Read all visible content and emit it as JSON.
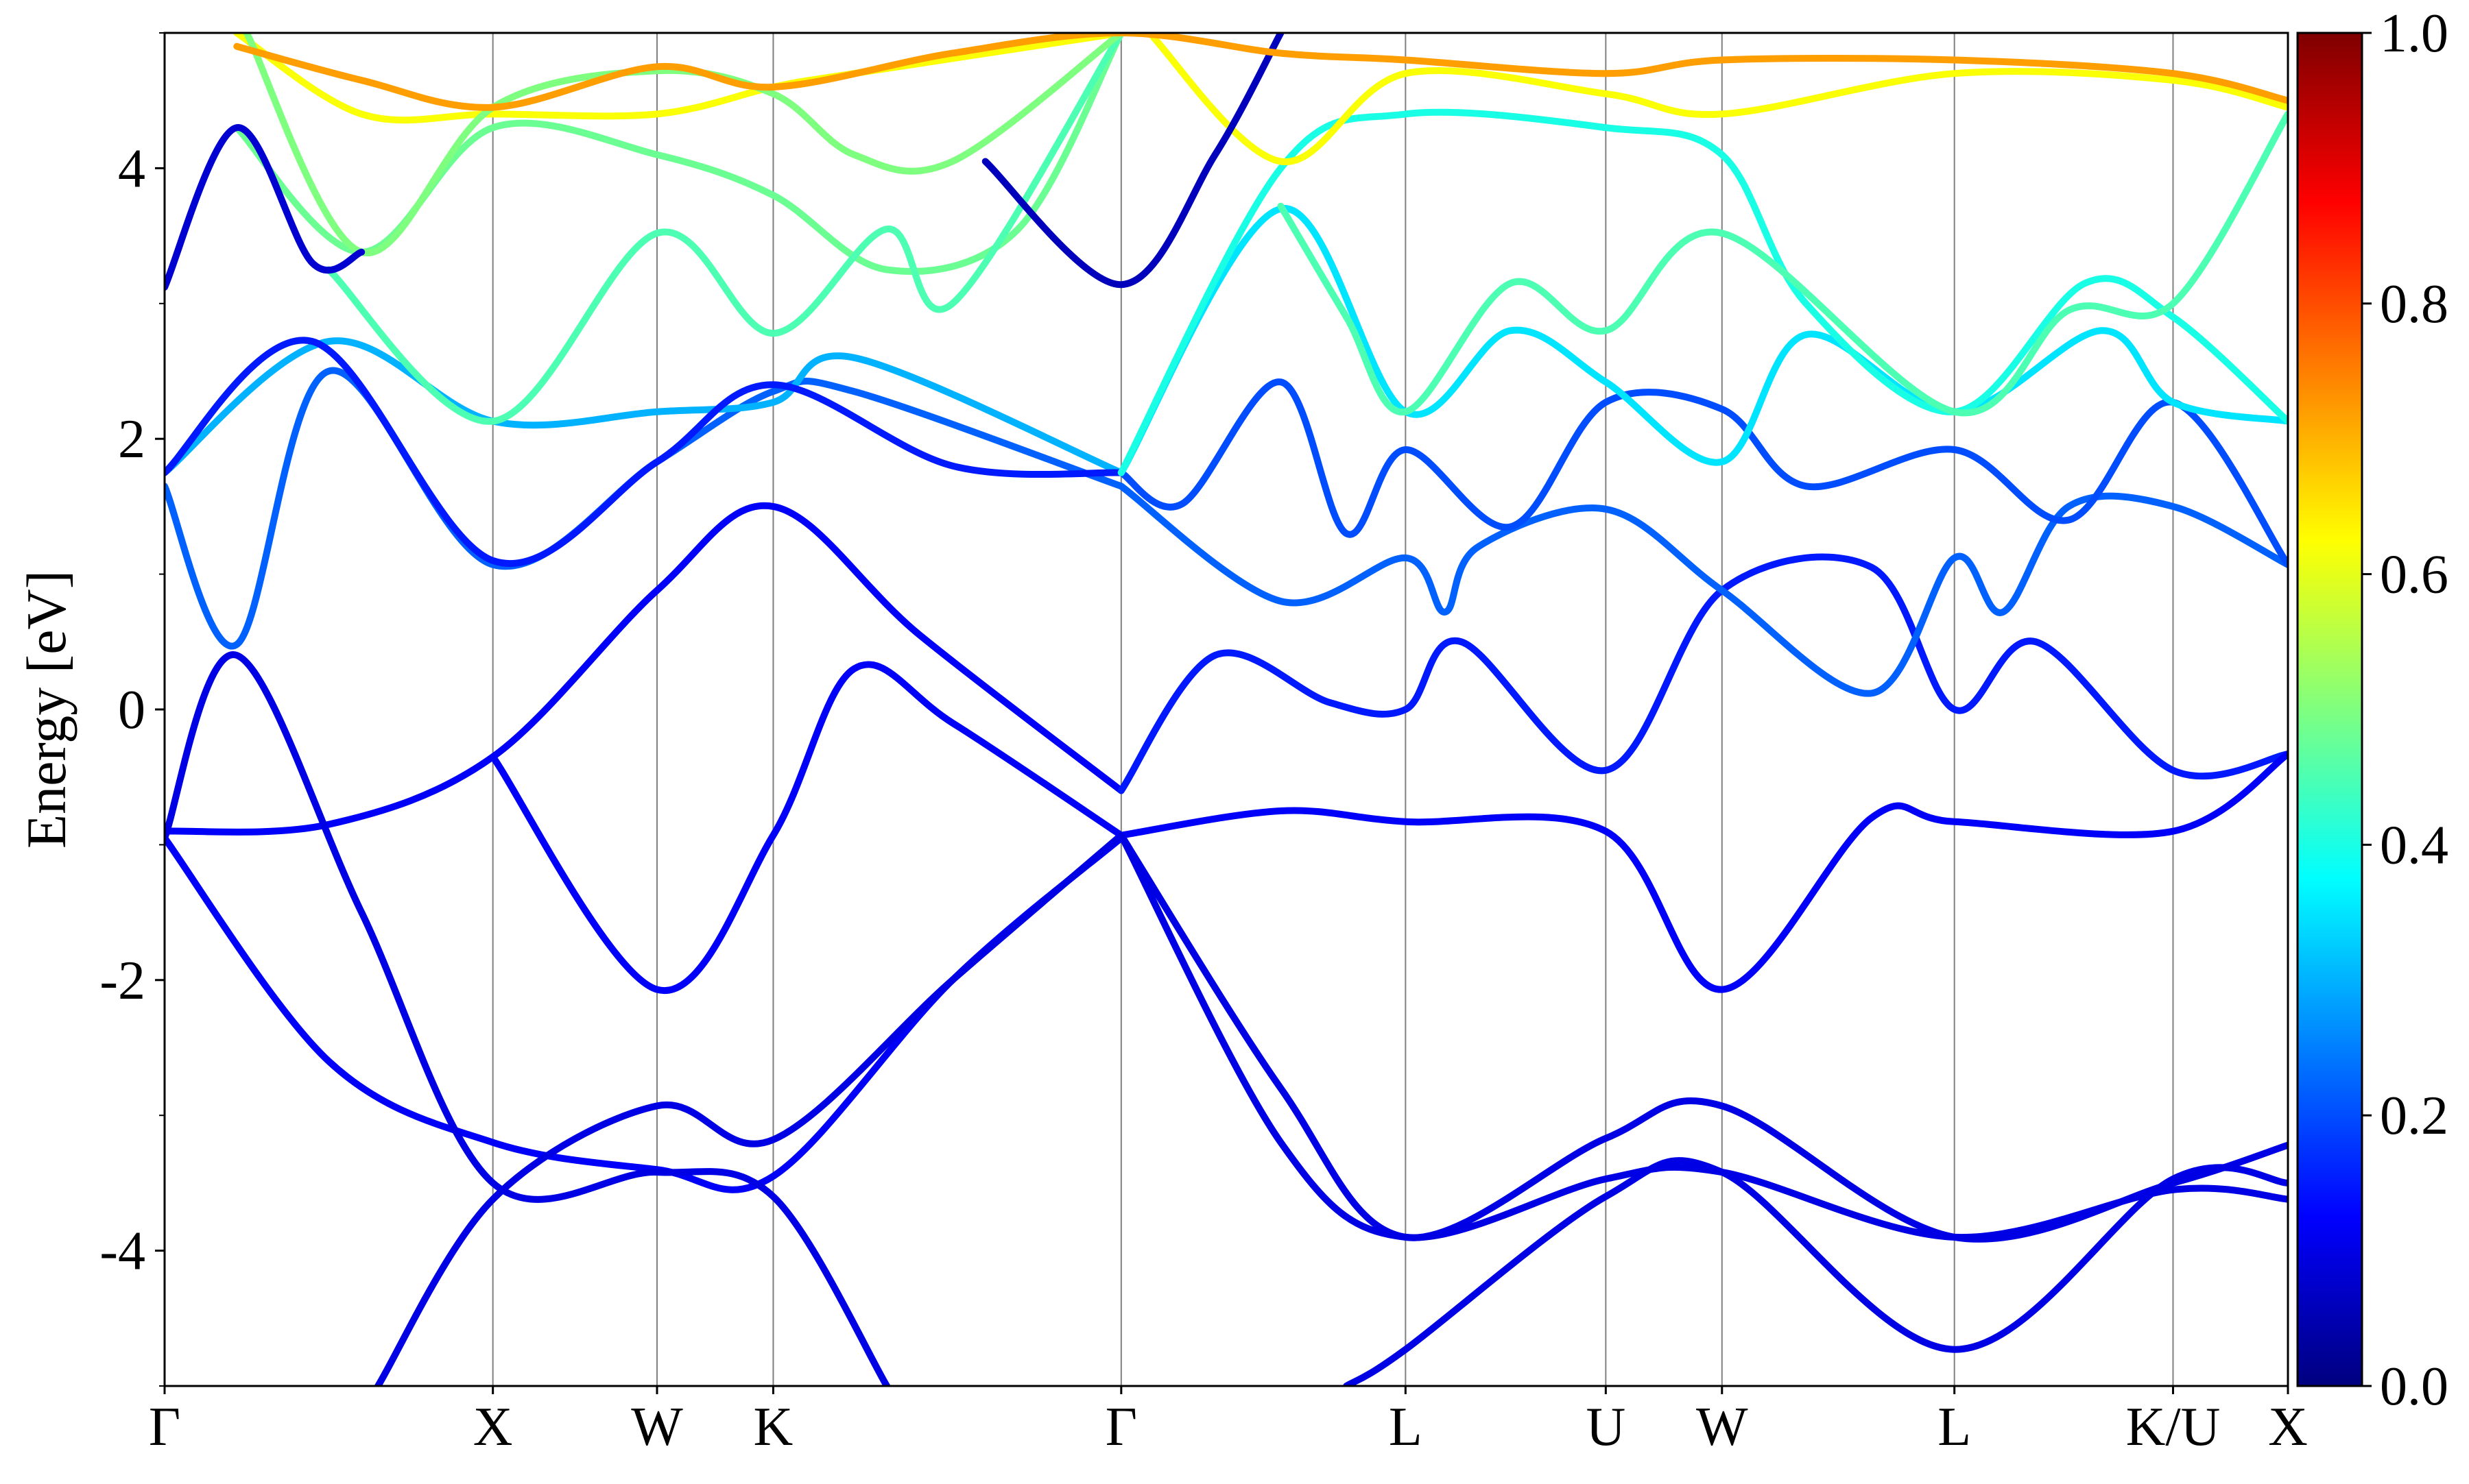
{
  "chart_data": {
    "type": "line",
    "title": "",
    "xlabel": "",
    "ylabel": "Energy [eV]",
    "ylim": [
      -5,
      5
    ],
    "yticks": [
      -4,
      -2,
      0,
      2,
      4
    ],
    "ytick_labels": [
      "-4",
      "-2",
      "0",
      "2",
      "4"
    ],
    "kpath_labels": [
      "Γ",
      "X",
      "W",
      "K",
      "Γ",
      "L",
      "U",
      "W",
      "L",
      "K/U",
      "X"
    ],
    "kpath_positions": [
      0.0,
      1.0,
      1.5,
      1.854,
      2.914,
      3.78,
      4.39,
      4.744,
      5.452,
      6.118,
      6.468
    ],
    "grid": "vertical lines at high-symmetry points",
    "legend": "none",
    "colorbar": {
      "range": [
        0.0,
        1.0
      ],
      "ticks": [
        0.0,
        0.2,
        0.4,
        0.6,
        0.8,
        1.0
      ],
      "tick_labels": [
        "0.0",
        "0.2",
        "0.4",
        "0.6",
        "0.8",
        "1.0"
      ],
      "colormap": "jet",
      "stops": [
        "#00007f",
        "#0000ff",
        "#007fff",
        "#00ffff",
        "#7fff7f",
        "#ffff00",
        "#ff7f00",
        "#ff0000",
        "#7f0000"
      ]
    },
    "series": [
      {
        "weight": 0.12,
        "points": [
          [
            0,
            -0.9
          ],
          [
            0.5,
            -0.85
          ],
          [
            1.0,
            -0.35
          ],
          [
            1.5,
            0.88
          ],
          [
            1.854,
            1.5
          ],
          [
            2.3,
            0.55
          ],
          [
            2.914,
            -0.6
          ]
        ]
      },
      {
        "weight": 0.12,
        "points": [
          [
            0,
            -0.95
          ],
          [
            0.5,
            -2.6
          ],
          [
            1.0,
            -3.2
          ],
          [
            1.5,
            -3.4
          ],
          [
            1.854,
            -3.45
          ],
          [
            2.4,
            -2.0
          ],
          [
            2.914,
            -0.95
          ]
        ]
      },
      {
        "weight": 0.1,
        "points": [
          [
            0,
            -0.95
          ],
          [
            0.22,
            0.4
          ],
          [
            0.6,
            -1.5
          ],
          [
            1.0,
            -3.5
          ],
          [
            1.5,
            -3.42
          ],
          [
            1.854,
            -3.6
          ],
          [
            2.2,
            -5.0
          ]
        ]
      },
      {
        "weight": 0.1,
        "points": [
          [
            0.65,
            -5.0
          ],
          [
            1.0,
            -3.62
          ],
          [
            1.5,
            -2.93
          ],
          [
            1.854,
            -3.18
          ],
          [
            2.4,
            -2.0
          ],
          [
            2.914,
            -0.93
          ]
        ]
      },
      {
        "weight": 0.12,
        "points": [
          [
            1.0,
            -0.35
          ],
          [
            1.5,
            -2.07
          ],
          [
            1.854,
            -0.93
          ],
          [
            2.1,
            0.3
          ],
          [
            2.4,
            -0.1
          ],
          [
            2.914,
            -0.93
          ]
        ]
      },
      {
        "weight": 0.22,
        "points": [
          [
            0,
            1.65
          ],
          [
            0.22,
            0.48
          ],
          [
            0.5,
            2.5
          ],
          [
            1.0,
            1.07
          ],
          [
            1.5,
            1.83
          ],
          [
            1.854,
            2.35
          ],
          [
            2.1,
            2.35
          ],
          [
            2.914,
            1.65
          ]
        ]
      },
      {
        "weight": 0.3,
        "points": [
          [
            0,
            1.75
          ],
          [
            0.5,
            2.72
          ],
          [
            1.0,
            2.13
          ],
          [
            1.5,
            2.2
          ],
          [
            1.854,
            2.27
          ],
          [
            2.1,
            2.6
          ],
          [
            2.914,
            1.75
          ]
        ]
      },
      {
        "weight": 0.15,
        "points": [
          [
            0,
            1.75
          ],
          [
            0.45,
            2.72
          ],
          [
            1.0,
            1.1
          ],
          [
            1.5,
            1.83
          ],
          [
            1.854,
            2.4
          ],
          [
            2.4,
            1.8
          ],
          [
            2.914,
            1.75
          ]
        ]
      },
      {
        "weight": 0.15,
        "points": [
          [
            2.914,
            -0.6
          ],
          [
            3.2,
            0.4
          ],
          [
            3.55,
            0.05
          ],
          [
            3.78,
            0.0
          ],
          [
            3.95,
            0.5
          ],
          [
            4.39,
            -0.45
          ],
          [
            4.744,
            0.88
          ],
          [
            5.2,
            1.05
          ],
          [
            5.452,
            0.0
          ],
          [
            5.7,
            0.5
          ],
          [
            6.118,
            -0.45
          ],
          [
            6.468,
            -0.33
          ]
        ]
      },
      {
        "weight": 0.12,
        "points": [
          [
            2.914,
            -0.93
          ],
          [
            3.4,
            -0.75
          ],
          [
            3.78,
            -0.83
          ],
          [
            4.39,
            -0.9
          ],
          [
            4.744,
            -2.07
          ],
          [
            5.2,
            -0.8
          ],
          [
            5.452,
            -0.83
          ],
          [
            6.118,
            -0.9
          ],
          [
            6.468,
            -0.33
          ]
        ]
      },
      {
        "weight": 0.1,
        "points": [
          [
            2.914,
            -0.93
          ],
          [
            3.4,
            -2.8
          ],
          [
            3.78,
            -3.9
          ],
          [
            4.39,
            -3.17
          ],
          [
            4.744,
            -2.93
          ],
          [
            5.452,
            -3.9
          ],
          [
            6.118,
            -3.5
          ],
          [
            6.468,
            -3.22
          ]
        ]
      },
      {
        "weight": 0.1,
        "points": [
          [
            3.6,
            -5.0
          ],
          [
            3.78,
            -4.73
          ],
          [
            4.39,
            -3.6
          ],
          [
            4.744,
            -3.42
          ],
          [
            5.452,
            -4.73
          ],
          [
            6.118,
            -3.47
          ],
          [
            6.468,
            -3.5
          ]
        ]
      },
      {
        "weight": 0.1,
        "points": [
          [
            2.914,
            -0.93
          ],
          [
            3.4,
            -3.2
          ],
          [
            3.78,
            -3.9
          ],
          [
            4.39,
            -3.47
          ],
          [
            4.744,
            -3.42
          ],
          [
            5.452,
            -3.9
          ],
          [
            6.118,
            -3.55
          ],
          [
            6.468,
            -3.62
          ]
        ]
      },
      {
        "weight": 0.22,
        "points": [
          [
            2.914,
            1.65
          ],
          [
            3.4,
            0.8
          ],
          [
            3.78,
            1.12
          ],
          [
            3.9,
            0.72
          ],
          [
            4.0,
            1.2
          ],
          [
            4.39,
            1.48
          ],
          [
            4.744,
            0.88
          ],
          [
            5.2,
            0.12
          ],
          [
            5.452,
            1.12
          ],
          [
            5.6,
            0.72
          ],
          [
            5.8,
            1.5
          ],
          [
            6.118,
            1.5
          ],
          [
            6.468,
            1.07
          ]
        ]
      },
      {
        "weight": 0.2,
        "points": [
          [
            2.914,
            1.75
          ],
          [
            3.1,
            1.52
          ],
          [
            3.4,
            2.42
          ],
          [
            3.6,
            1.3
          ],
          [
            3.78,
            1.92
          ],
          [
            4.1,
            1.35
          ],
          [
            4.39,
            2.27
          ],
          [
            4.744,
            2.22
          ],
          [
            5.0,
            1.65
          ],
          [
            5.452,
            1.92
          ],
          [
            5.8,
            1.4
          ],
          [
            6.118,
            2.27
          ],
          [
            6.468,
            1.07
          ]
        ]
      },
      {
        "weight": 0.35,
        "points": [
          [
            2.914,
            1.75
          ],
          [
            3.4,
            3.7
          ],
          [
            3.78,
            2.2
          ],
          [
            4.1,
            2.8
          ],
          [
            4.39,
            2.42
          ],
          [
            4.744,
            1.83
          ],
          [
            5.0,
            2.77
          ],
          [
            5.452,
            2.2
          ],
          [
            5.9,
            2.8
          ],
          [
            6.118,
            2.27
          ],
          [
            6.468,
            2.13
          ]
        ]
      },
      {
        "weight": 0.4,
        "points": [
          [
            2.914,
            1.75
          ],
          [
            3.4,
            4.0
          ],
          [
            3.78,
            4.4
          ],
          [
            4.39,
            4.3
          ],
          [
            4.744,
            4.1
          ],
          [
            5.0,
            3.0
          ],
          [
            5.452,
            2.2
          ],
          [
            5.85,
            3.15
          ],
          [
            6.118,
            2.9
          ],
          [
            6.468,
            2.13
          ]
        ]
      },
      {
        "weight": 0.45,
        "points": [
          [
            3.4,
            3.72
          ],
          [
            3.6,
            2.9
          ],
          [
            3.78,
            2.2
          ],
          [
            4.1,
            3.15
          ],
          [
            4.39,
            2.8
          ],
          [
            4.744,
            3.52
          ],
          [
            5.452,
            2.2
          ],
          [
            5.8,
            2.95
          ],
          [
            6.118,
            3.0
          ],
          [
            6.468,
            4.4
          ]
        ]
      },
      {
        "weight": 0.62,
        "points": [
          [
            3.0,
            5.0
          ],
          [
            3.4,
            4.05
          ],
          [
            3.78,
            4.7
          ],
          [
            4.39,
            4.55
          ],
          [
            4.744,
            4.4
          ],
          [
            5.452,
            4.7
          ],
          [
            6.118,
            4.65
          ],
          [
            6.468,
            4.45
          ]
        ]
      },
      {
        "weight": 0.48,
        "points": [
          [
            0.22,
            4.3
          ],
          [
            0.6,
            3.38
          ],
          [
            1.0,
            4.3
          ],
          [
            1.5,
            4.1
          ],
          [
            1.854,
            3.8
          ],
          [
            2.2,
            3.25
          ],
          [
            2.6,
            3.55
          ],
          [
            2.914,
            5.0
          ]
        ]
      },
      {
        "weight": 0.45,
        "points": [
          [
            0.5,
            3.25
          ],
          [
            1.0,
            2.13
          ],
          [
            1.5,
            3.52
          ],
          [
            1.854,
            2.78
          ],
          [
            2.2,
            3.55
          ],
          [
            2.4,
            3.0
          ],
          [
            2.914,
            5.0
          ]
        ]
      },
      {
        "weight": 0.62,
        "points": [
          [
            0.22,
            5.0
          ],
          [
            0.6,
            4.4
          ],
          [
            1.0,
            4.4
          ],
          [
            1.5,
            4.4
          ],
          [
            1.854,
            4.6
          ],
          [
            2.1,
            4.7
          ],
          [
            2.914,
            5.0
          ]
        ]
      },
      {
        "weight": 0.5,
        "points": [
          [
            0.25,
            5.0
          ],
          [
            0.6,
            3.38
          ],
          [
            1.0,
            4.45
          ],
          [
            1.5,
            4.72
          ],
          [
            1.854,
            4.55
          ],
          [
            2.1,
            4.1
          ],
          [
            2.4,
            4.05
          ],
          [
            2.914,
            5.0
          ]
        ]
      },
      {
        "weight": 0.08,
        "points": [
          [
            0,
            3.12
          ],
          [
            0.22,
            4.3
          ],
          [
            0.45,
            3.3
          ],
          [
            0.6,
            3.38
          ]
        ]
      },
      {
        "weight": 0.06,
        "points": [
          [
            2.5,
            4.05
          ],
          [
            2.914,
            3.14
          ],
          [
            3.2,
            4.1
          ],
          [
            3.4,
            5.0
          ]
        ]
      },
      {
        "weight": 0.72,
        "points": [
          [
            0.22,
            4.9
          ],
          [
            0.6,
            4.65
          ],
          [
            1.0,
            4.45
          ],
          [
            1.5,
            4.75
          ],
          [
            1.854,
            4.6
          ],
          [
            2.4,
            4.85
          ],
          [
            2.914,
            5.0
          ],
          [
            3.4,
            4.85
          ],
          [
            3.78,
            4.8
          ],
          [
            4.39,
            4.7
          ],
          [
            4.744,
            4.8
          ],
          [
            5.452,
            4.8
          ],
          [
            6.118,
            4.7
          ],
          [
            6.468,
            4.5
          ]
        ]
      }
    ]
  }
}
